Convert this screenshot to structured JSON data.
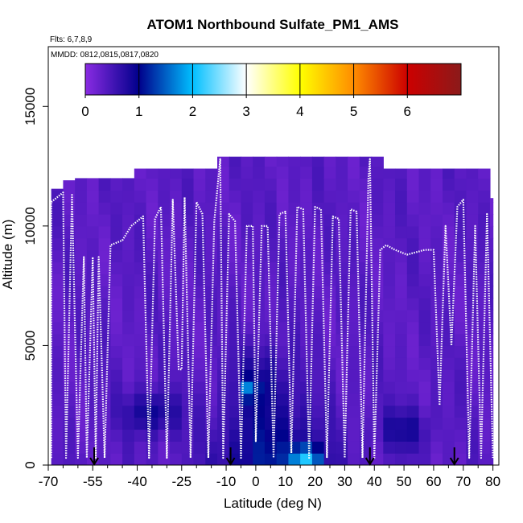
{
  "chart_data": {
    "type": "heatmap",
    "title": "ATOM1 Northbound Sulfate_PM1_AMS",
    "flights_label": "Flts: 6,7,8,9",
    "dates_label": "MMDD: 0812,0815,0817,0820",
    "xlabel": "Latitude (deg N)",
    "ylabel": "Altitude (m)",
    "xlim": [
      -70,
      82
    ],
    "ylim": [
      0,
      17500
    ],
    "x_ticks": [
      -70,
      -55,
      -40,
      -25,
      -10,
      0,
      10,
      20,
      30,
      40,
      50,
      60,
      70,
      80
    ],
    "x_minor_ticks": [
      -65,
      -60,
      -50,
      -45,
      -35,
      -30,
      -20,
      -15,
      -5,
      5,
      15,
      25,
      35,
      45,
      55,
      65,
      75
    ],
    "y_ticks": [
      0,
      5000,
      10000,
      15000
    ],
    "colorbar": {
      "range": [
        0,
        7
      ],
      "ticks": [
        0,
        1,
        2,
        3,
        4,
        5,
        6
      ],
      "colors": [
        "#8a2be2",
        "#00008b",
        "#00bfff",
        "#ffffff",
        "#ffff00",
        "#ff8c00",
        "#cc0000",
        "#8b1a1a"
      ]
    },
    "profile_markers_lat": [
      -54.5,
      -8.5,
      38.5,
      67
    ],
    "curtain_top": [
      {
        "lat": -69,
        "alt": 11200
      },
      {
        "lat": -60,
        "alt": 12000
      },
      {
        "lat": -40,
        "alt": 12000
      },
      {
        "lat": -40,
        "alt": 12400
      },
      {
        "lat": -12,
        "alt": 12400
      },
      {
        "lat": -12,
        "alt": 12900
      },
      {
        "lat": 40,
        "alt": 12900
      },
      {
        "lat": 40,
        "alt": 12400
      },
      {
        "lat": 77,
        "alt": 12400
      },
      {
        "lat": 77,
        "alt": 11500
      },
      {
        "lat": 80,
        "alt": 11000
      },
      {
        "lat": 80,
        "alt": 8500
      }
    ],
    "flight_track": [
      [
        -69,
        300
      ],
      [
        -69,
        11000
      ],
      [
        -67,
        11200
      ],
      [
        -65,
        11400
      ],
      [
        -64,
        300
      ],
      [
        -62,
        11300
      ],
      [
        -60,
        300
      ],
      [
        -58,
        8700
      ],
      [
        -57,
        300
      ],
      [
        -55,
        8700
      ],
      [
        -54,
        300
      ],
      [
        -53,
        8700
      ],
      [
        -51,
        300
      ],
      [
        -49,
        9200
      ],
      [
        -45,
        9400
      ],
      [
        -42,
        10000
      ],
      [
        -40,
        10200
      ],
      [
        -38,
        10400
      ],
      [
        -36,
        300
      ],
      [
        -34,
        10300
      ],
      [
        -32,
        10800
      ],
      [
        -30,
        300
      ],
      [
        -28,
        11100
      ],
      [
        -26,
        4000
      ],
      [
        -25,
        4000
      ],
      [
        -24,
        11200
      ],
      [
        -22,
        300
      ],
      [
        -20,
        11000
      ],
      [
        -18,
        10500
      ],
      [
        -16,
        300
      ],
      [
        -14,
        10200
      ],
      [
        -12,
        12800
      ],
      [
        -11,
        300
      ],
      [
        -9,
        10500
      ],
      [
        -7,
        10200
      ],
      [
        -5,
        300
      ],
      [
        -3,
        10000
      ],
      [
        -1,
        10000
      ],
      [
        0,
        1000
      ],
      [
        2,
        10000
      ],
      [
        4,
        10000
      ],
      [
        6,
        300
      ],
      [
        8,
        10500
      ],
      [
        10,
        10600
      ],
      [
        12,
        500
      ],
      [
        14,
        10800
      ],
      [
        16,
        10700
      ],
      [
        18,
        300
      ],
      [
        20,
        10800
      ],
      [
        22,
        10700
      ],
      [
        24,
        300
      ],
      [
        26,
        10400
      ],
      [
        28,
        10300
      ],
      [
        30,
        300
      ],
      [
        32,
        10700
      ],
      [
        34,
        10600
      ],
      [
        36,
        300
      ],
      [
        38,
        12000
      ],
      [
        38.5,
        12800
      ],
      [
        40,
        300
      ],
      [
        42,
        9000
      ],
      [
        44,
        9200
      ],
      [
        47,
        9000
      ],
      [
        51,
        8800
      ],
      [
        57,
        9000
      ],
      [
        60,
        9000
      ],
      [
        62,
        2500
      ],
      [
        64,
        10000
      ],
      [
        66,
        5000
      ],
      [
        68,
        10800
      ],
      [
        70,
        11100
      ],
      [
        72,
        300
      ],
      [
        74,
        10000
      ],
      [
        76,
        300
      ],
      [
        78,
        10500
      ],
      [
        80,
        300
      ]
    ],
    "grid_lat_step": 4,
    "grid_alt_step": 500
  }
}
